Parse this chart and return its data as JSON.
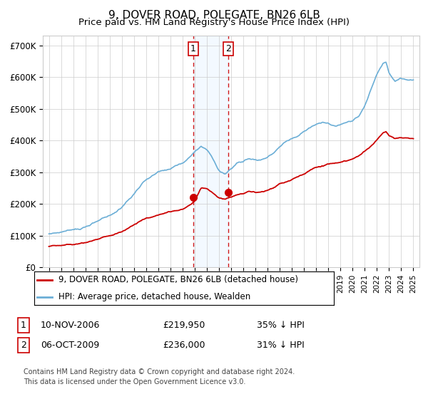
{
  "title": "9, DOVER ROAD, POLEGATE, BN26 6LB",
  "subtitle": "Price paid vs. HM Land Registry's House Price Index (HPI)",
  "ylabel_ticks": [
    "£0",
    "£100K",
    "£200K",
    "£300K",
    "£400K",
    "£500K",
    "£600K",
    "£700K"
  ],
  "ytick_values": [
    0,
    100000,
    200000,
    300000,
    400000,
    500000,
    600000,
    700000
  ],
  "ylim": [
    0,
    730000
  ],
  "sale1_date": 2006.87,
  "sale1_price": 219950,
  "sale2_date": 2009.77,
  "sale2_price": 236000,
  "hpi_color": "#6baed6",
  "price_color": "#cc0000",
  "highlight_color": "#ddeeff",
  "legend_label_price": "9, DOVER ROAD, POLEGATE, BN26 6LB (detached house)",
  "legend_label_hpi": "HPI: Average price, detached house, Wealden",
  "table_row1": [
    "1",
    "10-NOV-2006",
    "£219,950",
    "35% ↓ HPI"
  ],
  "table_row2": [
    "2",
    "06-OCT-2009",
    "£236,000",
    "31% ↓ HPI"
  ],
  "footnote1": "Contains HM Land Registry data © Crown copyright and database right 2024.",
  "footnote2": "This data is licensed under the Open Government Licence v3.0."
}
